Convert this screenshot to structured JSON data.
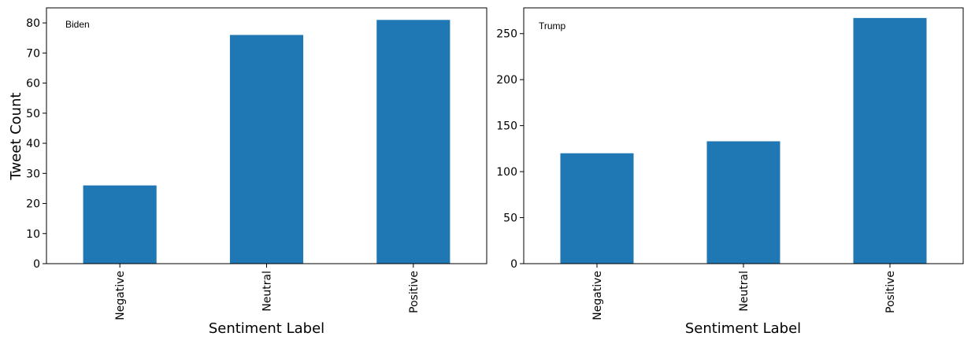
{
  "chart_data": [
    {
      "type": "bar",
      "label": "Biden",
      "categories": [
        "Negative",
        "Neutral",
        "Positive"
      ],
      "values": [
        26,
        76,
        81
      ],
      "xlabel": "Sentiment Label",
      "ylabel": "Tweet Count",
      "ylim": [
        0,
        85
      ],
      "yticks": [
        0,
        10,
        20,
        30,
        40,
        50,
        60,
        70,
        80
      ],
      "color": "#1f77b4",
      "grid": false
    },
    {
      "type": "bar",
      "label": "Trump",
      "categories": [
        "Negative",
        "Neutral",
        "Positive"
      ],
      "values": [
        120,
        133,
        267
      ],
      "xlabel": "Sentiment Label",
      "ylabel": "",
      "ylim": [
        0,
        278
      ],
      "yticks": [
        0,
        50,
        100,
        150,
        200,
        250
      ],
      "color": "#1f77b4",
      "grid": false
    }
  ]
}
